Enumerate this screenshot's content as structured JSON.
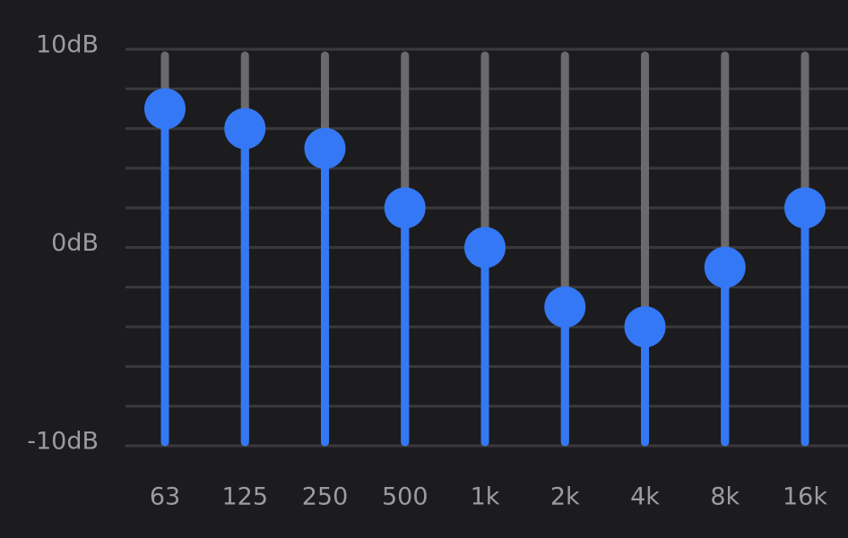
{
  "chart_data": {
    "type": "equalizer",
    "categories": [
      "63",
      "125",
      "250",
      "500",
      "1k",
      "2k",
      "4k",
      "8k",
      "16k"
    ],
    "values": [
      7,
      6,
      5,
      2,
      0,
      -3,
      -4,
      -1,
      2
    ],
    "color": "#3478f6",
    "ylim": [
      -10,
      10
    ],
    "yticks": [
      {
        "value": 10,
        "label": "10dB"
      },
      {
        "value": 0,
        "label": "0dB"
      },
      {
        "value": -10,
        "label": "-10dB"
      }
    ],
    "minor_yticks": [
      8,
      6,
      4,
      2,
      -2,
      -4,
      -6,
      -8
    ],
    "grid": true
  }
}
